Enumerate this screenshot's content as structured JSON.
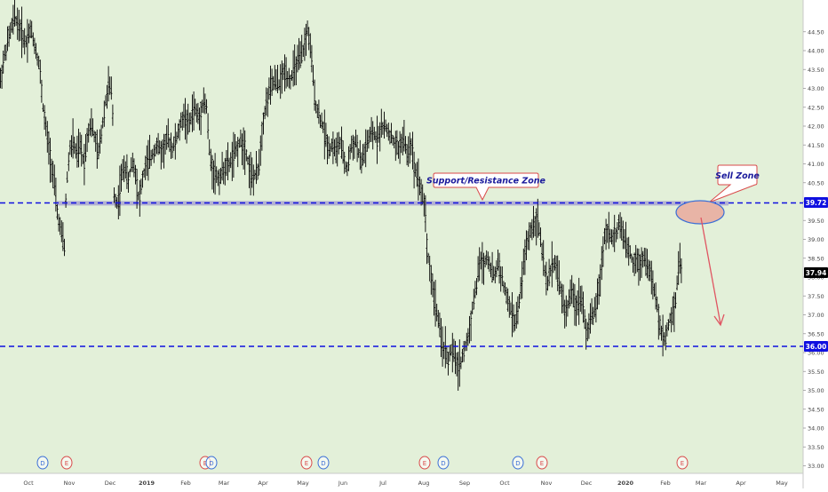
{
  "colors": {
    "background": "#e3f0d9",
    "axis_background": "#ffffff",
    "candle": "#000000",
    "level_line": "#1010e0",
    "zone_fill": "#a9a6cf",
    "annotation_border": "#d94a4a",
    "annotation_text": "#1a1a9c",
    "sell_ellipse_fill": "#e8b4a6",
    "sell_ellipse_border": "#3b6fd6",
    "arrow": "#e05562",
    "earnings_marker": "#d94a4a",
    "dividend_marker": "#3b6fd6"
  },
  "chart_data": {
    "type": "candlestick",
    "y_axis": {
      "range": [
        32.8,
        45.2
      ],
      "tick_labels": [
        "33.00",
        "33.50",
        "34.00",
        "34.50",
        "35.00",
        "35.50",
        "36.00",
        "36.50",
        "37.00",
        "37.50",
        "38.00",
        "38.50",
        "39.00",
        "39.50",
        "40.00",
        "40.50",
        "41.00",
        "41.50",
        "42.00",
        "42.50",
        "43.00",
        "43.50",
        "44.00",
        "44.50"
      ]
    },
    "x_axis": {
      "tick_labels": [
        "Oct",
        "Nov",
        "Dec",
        "2019",
        "Feb",
        "Mar",
        "Apr",
        "May",
        "Jun",
        "Jul",
        "Aug",
        "Sep",
        "Oct",
        "Nov",
        "Dec",
        "2020",
        "Feb",
        "Mar",
        "Apr",
        "May"
      ]
    },
    "price_path": [
      [
        0,
        43.2
      ],
      [
        4,
        43.8
      ],
      [
        10,
        44.4
      ],
      [
        16,
        44.9
      ],
      [
        22,
        44.6
      ],
      [
        28,
        44.2
      ],
      [
        34,
        44.6
      ],
      [
        38,
        44.2
      ],
      [
        44,
        43.6
      ],
      [
        48,
        42.5
      ],
      [
        52,
        41.8
      ],
      [
        56,
        41.2
      ],
      [
        60,
        40.6
      ],
      [
        64,
        39.7
      ],
      [
        68,
        39.2
      ],
      [
        72,
        38.8
      ],
      [
        74,
        40.3
      ],
      [
        78,
        41.4
      ],
      [
        82,
        41.6
      ],
      [
        86,
        41.2
      ],
      [
        90,
        41.5
      ],
      [
        94,
        41.0
      ],
      [
        98,
        41.8
      ],
      [
        102,
        42.1
      ],
      [
        106,
        41.7
      ],
      [
        110,
        41.2
      ],
      [
        114,
        41.9
      ],
      [
        118,
        42.6
      ],
      [
        122,
        43.1
      ],
      [
        126,
        42.8
      ],
      [
        128,
        40.2
      ],
      [
        132,
        39.9
      ],
      [
        136,
        40.6
      ],
      [
        140,
        41.0
      ],
      [
        144,
        40.5
      ],
      [
        148,
        41.1
      ],
      [
        152,
        40.8
      ],
      [
        156,
        40.0
      ],
      [
        160,
        40.6
      ],
      [
        164,
        41.0
      ],
      [
        170,
        41.2
      ],
      [
        176,
        41.5
      ],
      [
        182,
        41.3
      ],
      [
        188,
        41.7
      ],
      [
        194,
        41.4
      ],
      [
        200,
        41.8
      ],
      [
        206,
        42.3
      ],
      [
        212,
        42.0
      ],
      [
        218,
        42.5
      ],
      [
        224,
        42.2
      ],
      [
        228,
        42.7
      ],
      [
        232,
        42.5
      ],
      [
        236,
        41.1
      ],
      [
        240,
        40.8
      ],
      [
        246,
        40.6
      ],
      [
        252,
        40.9
      ],
      [
        258,
        41.0
      ],
      [
        264,
        41.3
      ],
      [
        270,
        41.6
      ],
      [
        276,
        41.4
      ],
      [
        280,
        40.9
      ],
      [
        284,
        40.6
      ],
      [
        290,
        40.8
      ],
      [
        296,
        42.2
      ],
      [
        302,
        42.9
      ],
      [
        308,
        43.2
      ],
      [
        314,
        43.1
      ],
      [
        320,
        43.5
      ],
      [
        326,
        43.2
      ],
      [
        332,
        43.6
      ],
      [
        338,
        43.8
      ],
      [
        342,
        44.1
      ],
      [
        346,
        44.6
      ],
      [
        350,
        43.8
      ],
      [
        354,
        42.7
      ],
      [
        358,
        42.3
      ],
      [
        362,
        42.1
      ],
      [
        366,
        41.7
      ],
      [
        370,
        41.4
      ],
      [
        374,
        41.5
      ],
      [
        378,
        41.3
      ],
      [
        382,
        41.6
      ],
      [
        386,
        41.2
      ],
      [
        390,
        40.8
      ],
      [
        394,
        41.4
      ],
      [
        400,
        41.6
      ],
      [
        406,
        41.0
      ],
      [
        412,
        41.5
      ],
      [
        418,
        41.8
      ],
      [
        424,
        41.7
      ],
      [
        430,
        42.0
      ],
      [
        436,
        41.9
      ],
      [
        442,
        41.6
      ],
      [
        448,
        41.4
      ],
      [
        454,
        41.7
      ],
      [
        458,
        41.2
      ],
      [
        462,
        41.6
      ],
      [
        466,
        40.9
      ],
      [
        470,
        40.7
      ],
      [
        474,
        40.2
      ],
      [
        478,
        39.9
      ],
      [
        480,
        38.8
      ],
      [
        484,
        38.1
      ],
      [
        488,
        37.5
      ],
      [
        492,
        37.0
      ],
      [
        496,
        36.3
      ],
      [
        500,
        36.1
      ],
      [
        504,
        35.8
      ],
      [
        508,
        36.1
      ],
      [
        512,
        35.8
      ],
      [
        516,
        35.6
      ],
      [
        520,
        35.9
      ],
      [
        524,
        36.2
      ],
      [
        528,
        36.6
      ],
      [
        532,
        37.3
      ],
      [
        536,
        37.8
      ],
      [
        540,
        38.5
      ],
      [
        544,
        38.3
      ],
      [
        548,
        38.6
      ],
      [
        552,
        38.2
      ],
      [
        556,
        38.0
      ],
      [
        560,
        38.4
      ],
      [
        564,
        38.0
      ],
      [
        568,
        37.6
      ],
      [
        572,
        37.3
      ],
      [
        576,
        37.0
      ],
      [
        580,
        36.8
      ],
      [
        584,
        37.3
      ],
      [
        588,
        38.2
      ],
      [
        592,
        38.8
      ],
      [
        596,
        39.2
      ],
      [
        600,
        39.4
      ],
      [
        604,
        39.6
      ],
      [
        608,
        39.0
      ],
      [
        612,
        38.2
      ],
      [
        616,
        37.8
      ],
      [
        620,
        38.3
      ],
      [
        624,
        38.4
      ],
      [
        628,
        38.0
      ],
      [
        632,
        37.5
      ],
      [
        636,
        37.0
      ],
      [
        640,
        37.4
      ],
      [
        644,
        37.6
      ],
      [
        648,
        37.2
      ],
      [
        652,
        37.5
      ],
      [
        656,
        37.3
      ],
      [
        660,
        36.4
      ],
      [
        664,
        36.9
      ],
      [
        668,
        37.0
      ],
      [
        672,
        37.5
      ],
      [
        676,
        38.1
      ],
      [
        680,
        39.1
      ],
      [
        684,
        39.3
      ],
      [
        688,
        39.0
      ],
      [
        692,
        39.1
      ],
      [
        696,
        39.4
      ],
      [
        700,
        39.2
      ],
      [
        704,
        38.8
      ],
      [
        708,
        38.7
      ],
      [
        712,
        38.4
      ],
      [
        716,
        38.5
      ],
      [
        720,
        38.3
      ],
      [
        724,
        38.6
      ],
      [
        728,
        38.3
      ],
      [
        732,
        38.1
      ],
      [
        736,
        37.6
      ],
      [
        740,
        37.1
      ],
      [
        744,
        36.5
      ],
      [
        748,
        36.3
      ],
      [
        752,
        36.8
      ],
      [
        756,
        37.0
      ],
      [
        760,
        37.4
      ],
      [
        764,
        38.5
      ],
      [
        768,
        38.0
      ]
    ],
    "last_price_label": "37.94",
    "levels": [
      {
        "label": "39.72",
        "style": "dashed"
      },
      {
        "label": "36.00",
        "style": "dashed"
      }
    ],
    "annotations": [
      {
        "text": "Support/Resistance Zone"
      },
      {
        "text": "Sell Zone"
      }
    ],
    "event_markers": [
      {
        "letter": "D",
        "kind": "dividend"
      },
      {
        "letter": "E",
        "kind": "earnings"
      },
      {
        "letter": "E",
        "kind": "earnings"
      },
      {
        "letter": "D",
        "kind": "dividend"
      },
      {
        "letter": "E",
        "kind": "earnings"
      },
      {
        "letter": "D",
        "kind": "dividend"
      },
      {
        "letter": "E",
        "kind": "earnings"
      },
      {
        "letter": "D",
        "kind": "dividend"
      },
      {
        "letter": "D",
        "kind": "dividend"
      },
      {
        "letter": "E",
        "kind": "earnings"
      },
      {
        "letter": "E",
        "kind": "earnings"
      }
    ]
  }
}
